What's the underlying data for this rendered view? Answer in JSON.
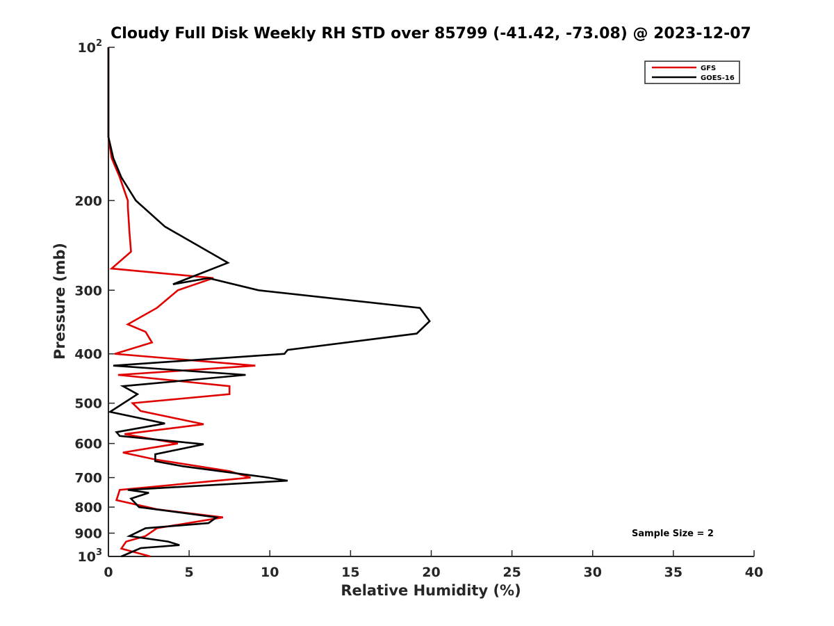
{
  "chart_data": {
    "type": "line",
    "title": "Cloudy Full Disk Weekly RH STD over 85799 (-41.42, -73.08) @ 2023-12-07",
    "xlabel": "Relative Humidity (%)",
    "ylabel": "Pressure (mb)",
    "xlim": [
      0,
      40
    ],
    "ylim": [
      100,
      1000
    ],
    "yscale": "log",
    "y_reversed": true,
    "grid": false,
    "legend_position": "top-right",
    "x_ticks": [
      "0",
      "5",
      "10",
      "15",
      "20",
      "25",
      "30",
      "35",
      "40"
    ],
    "y_ticks": [
      {
        "value": 100,
        "base": "10",
        "exp": "2"
      },
      {
        "value": 200,
        "label": "200"
      },
      {
        "value": 300,
        "label": "300"
      },
      {
        "value": 400,
        "label": "400"
      },
      {
        "value": 500,
        "label": "500"
      },
      {
        "value": 600,
        "label": "600"
      },
      {
        "value": 700,
        "label": "700"
      },
      {
        "value": 800,
        "label": "800"
      },
      {
        "value": 900,
        "label": "900"
      },
      {
        "value": 1000,
        "base": "10",
        "exp": "3"
      }
    ],
    "annotation": "Sample Size = 2",
    "series": [
      {
        "name": "GFS",
        "color": "#e00000",
        "points": [
          [
            0,
            100
          ],
          [
            0,
            150
          ],
          [
            0.2,
            165
          ],
          [
            0.7,
            180
          ],
          [
            1.2,
            200
          ],
          [
            1.2,
            205
          ],
          [
            1.3,
            230
          ],
          [
            1.4,
            252
          ],
          [
            0.2,
            272
          ],
          [
            6.5,
            284
          ],
          [
            4.3,
            300
          ],
          [
            3.0,
            325
          ],
          [
            1.2,
            350
          ],
          [
            2.3,
            362
          ],
          [
            2.7,
            380
          ],
          [
            0.4,
            400
          ],
          [
            9.1,
            422
          ],
          [
            0.6,
            440
          ],
          [
            7.5,
            463
          ],
          [
            7.5,
            480
          ],
          [
            1.5,
            500
          ],
          [
            2.0,
            518
          ],
          [
            5.9,
            550
          ],
          [
            1.0,
            575
          ],
          [
            4.3,
            600
          ],
          [
            0.9,
            625
          ],
          [
            2.9,
            645
          ],
          [
            7.5,
            680
          ],
          [
            8.8,
            700
          ],
          [
            0.7,
            740
          ],
          [
            0.5,
            775
          ],
          [
            3.0,
            808
          ],
          [
            7.1,
            838
          ],
          [
            3.0,
            880
          ],
          [
            2.3,
            912
          ],
          [
            1.1,
            935
          ],
          [
            0.8,
            965
          ],
          [
            2.6,
            1000
          ]
        ]
      },
      {
        "name": "GOES-16",
        "color": "#000000",
        "points": [
          [
            0,
            100
          ],
          [
            0,
            150
          ],
          [
            0.3,
            165
          ],
          [
            0.8,
            180
          ],
          [
            1.7,
            200
          ],
          [
            3.5,
            225
          ],
          [
            7.4,
            265
          ],
          [
            4.0,
            292
          ],
          [
            6.2,
            284
          ],
          [
            9.3,
            300
          ],
          [
            19.3,
            325
          ],
          [
            19.9,
            345
          ],
          [
            19.1,
            365
          ],
          [
            11.1,
            393
          ],
          [
            10.9,
            400
          ],
          [
            0.3,
            422
          ],
          [
            8.5,
            440
          ],
          [
            0.9,
            463
          ],
          [
            1.8,
            480
          ],
          [
            0.1,
            520
          ],
          [
            3.5,
            548
          ],
          [
            0.5,
            570
          ],
          [
            0.7,
            580
          ],
          [
            5.9,
            602
          ],
          [
            2.9,
            630
          ],
          [
            2.9,
            650
          ],
          [
            4.6,
            665
          ],
          [
            9.9,
            700
          ],
          [
            11.1,
            710
          ],
          [
            1.2,
            740
          ],
          [
            2.5,
            750
          ],
          [
            1.4,
            770
          ],
          [
            1.9,
            800
          ],
          [
            6.7,
            838
          ],
          [
            6.2,
            860
          ],
          [
            2.3,
            880
          ],
          [
            1.3,
            912
          ],
          [
            3.7,
            935
          ],
          [
            4.4,
            950
          ],
          [
            2.0,
            963
          ],
          [
            0.8,
            1000
          ]
        ]
      }
    ]
  }
}
